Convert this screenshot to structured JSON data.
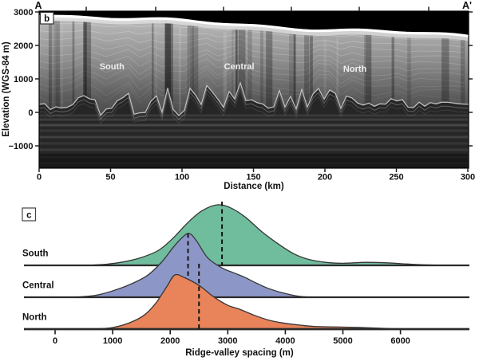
{
  "figure": {
    "background": "#ffffff"
  },
  "panel_b": {
    "tag": "b",
    "endpoint_left": "A",
    "endpoint_right": "A'",
    "ylabel": "Elevation (WGS-84 m)",
    "xlabel": "Distance (km)",
    "yticks": [
      {
        "v": 3000,
        "label": "3000"
      },
      {
        "v": 2000,
        "label": "2000"
      },
      {
        "v": 1000,
        "label": "1000"
      },
      {
        "v": 0,
        "label": "0"
      },
      {
        "v": -1000,
        "label": "−1000"
      }
    ],
    "xticks": [
      0,
      50,
      100,
      150,
      200,
      250,
      300
    ],
    "regions": [
      {
        "label": "South",
        "x_km": 51,
        "elev_m": 1280
      },
      {
        "label": "Central",
        "x_km": 140,
        "elev_m": 1280
      },
      {
        "label": "North",
        "x_km": 221,
        "elev_m": 1210
      }
    ]
  },
  "panel_c": {
    "tag": "c",
    "xlabel": "Ridge-valley spacing (m)",
    "xticks": [
      0,
      1000,
      2000,
      3000,
      4000,
      5000,
      6000
    ]
  },
  "chart_data": [
    {
      "type": "heatmap",
      "panel": "b",
      "subtype": "radar-sounding-profile",
      "transect": [
        "A",
        "A'"
      ],
      "xlabel": "Distance (km)",
      "ylabel": "Elevation (WGS-84 m)",
      "xlim_km": [
        0,
        300
      ],
      "ylim_m": [
        -1700,
        3000
      ],
      "surface_elev_left_m": 2900,
      "surface_elev_right_m": 2300,
      "bed_relief_elev_m": [
        -100,
        900
      ],
      "region_labels": [
        "South",
        "Central",
        "North"
      ]
    },
    {
      "type": "area",
      "panel": "c",
      "subtype": "ridgeline-distributions",
      "xlabel": "Ridge-valley spacing (m)",
      "xlim_m": [
        -550,
        7200
      ],
      "xticks": [
        0,
        1000,
        2000,
        3000,
        4000,
        5000,
        6000
      ],
      "series": [
        {
          "name": "South",
          "color": "#6fbd9d",
          "median_m": 2900,
          "mode_m": 2820,
          "points": [
            [
              550,
              0
            ],
            [
              900,
              0.02
            ],
            [
              1200,
              0.06
            ],
            [
              1500,
              0.13
            ],
            [
              1800,
              0.25
            ],
            [
              2050,
              0.45
            ],
            [
              2300,
              0.7
            ],
            [
              2550,
              0.9
            ],
            [
              2820,
              1.0
            ],
            [
              3050,
              0.95
            ],
            [
              3300,
              0.8
            ],
            [
              3600,
              0.55
            ],
            [
              3900,
              0.34
            ],
            [
              4150,
              0.19
            ],
            [
              4400,
              0.1
            ],
            [
              4700,
              0.05
            ],
            [
              5000,
              0.035
            ],
            [
              5400,
              0.05
            ],
            [
              5800,
              0.04
            ],
            [
              6200,
              0.018
            ],
            [
              6600,
              0.004
            ],
            [
              6900,
              0
            ]
          ]
        },
        {
          "name": "Central",
          "color": "#8d97c7",
          "median_m": 2310,
          "mode_m": 2330,
          "points": [
            [
              320,
              0
            ],
            [
              700,
              0.03
            ],
            [
              1000,
              0.1
            ],
            [
              1300,
              0.2
            ],
            [
              1600,
              0.34
            ],
            [
              1850,
              0.55
            ],
            [
              2050,
              0.78
            ],
            [
              2200,
              0.93
            ],
            [
              2330,
              1.0
            ],
            [
              2460,
              0.88
            ],
            [
              2650,
              0.62
            ],
            [
              2900,
              0.46
            ],
            [
              3100,
              0.385
            ],
            [
              3300,
              0.31
            ],
            [
              3500,
              0.22
            ],
            [
              3700,
              0.14
            ],
            [
              3950,
              0.07
            ],
            [
              4200,
              0.02
            ],
            [
              4420,
              0
            ]
          ]
        },
        {
          "name": "North",
          "color": "#e8835a",
          "median_m": 2500,
          "mode_m": 2080,
          "points": [
            [
              650,
              0
            ],
            [
              1000,
              0.03
            ],
            [
              1300,
              0.12
            ],
            [
              1550,
              0.26
            ],
            [
              1750,
              0.48
            ],
            [
              1950,
              0.8
            ],
            [
              2080,
              1.0
            ],
            [
              2250,
              0.95
            ],
            [
              2510,
              0.8
            ],
            [
              2750,
              0.6
            ],
            [
              3000,
              0.44
            ],
            [
              3200,
              0.37
            ],
            [
              3450,
              0.26
            ],
            [
              3700,
              0.17
            ],
            [
              3950,
              0.115
            ],
            [
              4200,
              0.08
            ],
            [
              4500,
              0.05
            ],
            [
              4900,
              0.04
            ],
            [
              5300,
              0.03
            ],
            [
              5700,
              0.015
            ],
            [
              6000,
              0
            ]
          ]
        }
      ]
    }
  ]
}
